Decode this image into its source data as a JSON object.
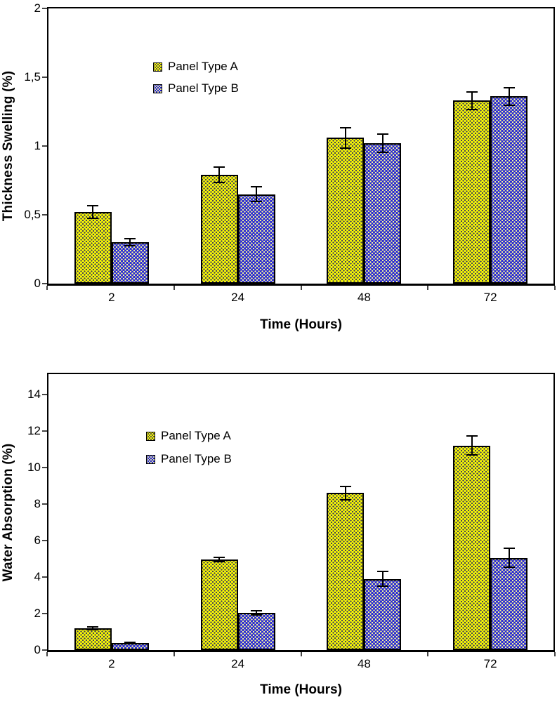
{
  "figure": {
    "background": "#ffffff",
    "bar_outline_color": "#000000",
    "error_bar_color": "#000000",
    "axis_color": "#000000"
  },
  "chart_data": [
    {
      "type": "bar",
      "title": "",
      "ylabel": "Thickness Swelling (%)",
      "xlabel": "Time (Hours)",
      "categories": [
        "2",
        "24",
        "48",
        "72"
      ],
      "series": [
        {
          "name": "Panel Type A",
          "values": [
            0.52,
            0.79,
            1.06,
            1.33
          ],
          "errors": [
            0.05,
            0.06,
            0.08,
            0.07
          ],
          "fill": "#ffff00",
          "dot_color": "#3d3d55",
          "pattern": "dotted-grid"
        },
        {
          "name": "Panel Type B",
          "values": [
            0.3,
            0.65,
            1.02,
            1.36
          ],
          "errors": [
            0.03,
            0.06,
            0.07,
            0.07
          ],
          "fill": "#2020d8",
          "dot_color": "#ffff99",
          "pattern": "dotted-grid"
        }
      ],
      "ylim": [
        0,
        2
      ],
      "ytick_values": [
        0,
        0.5,
        1,
        1.5,
        2
      ],
      "ytick_labels": [
        "0",
        "0,5",
        "1",
        "1,5",
        "2"
      ],
      "decimal_separator": ",",
      "grid": false,
      "error_bars": true,
      "legend_position": "inside-upper-left",
      "legend_entries": [
        "Panel Type A",
        "Panel Type B"
      ]
    },
    {
      "type": "bar",
      "title": "",
      "ylabel": "Water Absorption (%)",
      "xlabel": "Time (Hours)",
      "categories": [
        "2",
        "24",
        "48",
        "72"
      ],
      "series": [
        {
          "name": "Panel Type A",
          "values": [
            1.2,
            4.95,
            8.6,
            11.2
          ],
          "errors": [
            0.12,
            0.15,
            0.4,
            0.55
          ],
          "fill": "#ffff00",
          "dot_color": "#3d3d55",
          "pattern": "dotted-grid"
        },
        {
          "name": "Panel Type B",
          "values": [
            0.4,
            2.05,
            3.9,
            5.05
          ],
          "errors": [
            0.05,
            0.15,
            0.45,
            0.55
          ],
          "fill": "#2020d8",
          "dot_color": "#ffff99",
          "pattern": "dotted-grid"
        }
      ],
      "ylim": [
        0,
        15
      ],
      "ytick_values": [
        0,
        2,
        4,
        6,
        8,
        10,
        12,
        14
      ],
      "ytick_labels": [
        "0",
        "2",
        "4",
        "6",
        "8",
        "10",
        "12",
        "14"
      ],
      "decimal_separator": ",",
      "grid": false,
      "error_bars": true,
      "legend_position": "inside-upper-left",
      "legend_entries": [
        "Panel Type A",
        "Panel Type B"
      ]
    }
  ]
}
